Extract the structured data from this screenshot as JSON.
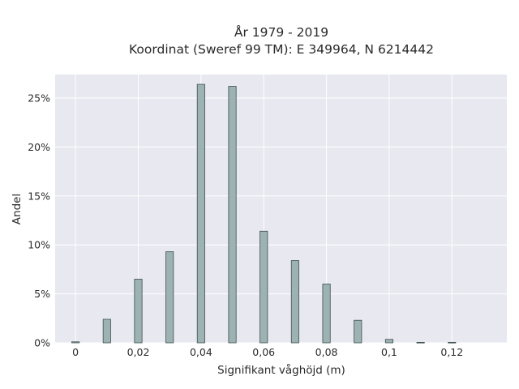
{
  "chart_data": {
    "type": "bar",
    "title": "År 1979 - 2019",
    "subtitle": "Koordinat (Sweref 99 TM): E 349964, N 6214442",
    "xlabel": "Signifikant våghöjd (m)",
    "ylabel": "Andel",
    "x": [
      0,
      0.01,
      0.02,
      0.03,
      0.04,
      0.05,
      0.06,
      0.07,
      0.08,
      0.09,
      0.1,
      0.11,
      0.12
    ],
    "values": [
      0.1,
      2.4,
      6.5,
      9.3,
      26.4,
      26.2,
      11.4,
      8.4,
      6.0,
      2.3,
      0.35,
      0.05,
      0.05
    ],
    "x_ticks": [
      0,
      0.02,
      0.04,
      0.06,
      0.08,
      0.1,
      0.12
    ],
    "x_tick_labels": [
      "0",
      "0,02",
      "0,04",
      "0,06",
      "0,08",
      "0,1",
      "0,12"
    ],
    "y_ticks": [
      0,
      5,
      10,
      15,
      20,
      25
    ],
    "y_tick_labels": [
      "0%",
      "5%",
      "10%",
      "15%",
      "20%",
      "25%"
    ],
    "xlim": [
      -0.0065,
      0.1375
    ],
    "ylim": [
      0,
      27.4
    ],
    "grid": true,
    "bar_color": "#9db3b3",
    "bar_edge_color": "#3c4d4d",
    "plot_background": "#e8e8f0",
    "grid_color": "#ffffff"
  }
}
